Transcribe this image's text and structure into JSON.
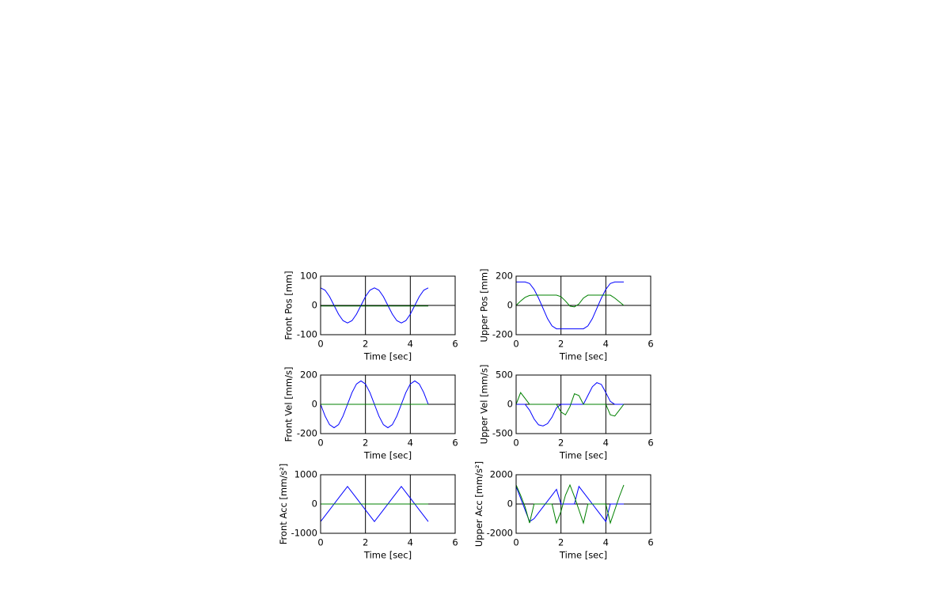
{
  "chart_data": [
    {
      "type": "line",
      "x_label": "Time [sec]",
      "y_label": "Front Pos [mm]",
      "x": [
        0,
        0.2,
        0.4,
        0.6,
        0.8,
        1.0,
        1.2,
        1.4,
        1.6,
        1.8,
        2.0,
        2.2,
        2.4,
        2.6,
        2.8,
        3.0,
        3.2,
        3.4,
        3.6,
        3.8,
        4.0,
        4.2,
        4.4,
        4.6,
        4.8
      ],
      "series": [
        {
          "color": "#0000ff",
          "values": [
            60,
            52,
            30,
            0,
            -30,
            -52,
            -60,
            -52,
            -30,
            0,
            30,
            52,
            60,
            52,
            30,
            0,
            -30,
            -52,
            -60,
            -52,
            -30,
            0,
            30,
            52,
            60
          ]
        },
        {
          "color": "#006400",
          "values": [
            -2,
            -2,
            -2,
            -2,
            -2,
            -2,
            -2,
            -2,
            -2,
            -2,
            -2,
            -2,
            -2,
            -2,
            -2,
            -2,
            -2,
            -2,
            -2,
            -2,
            -2,
            -2,
            -2,
            -2,
            -2
          ]
        }
      ],
      "xlim": [
        0,
        6
      ],
      "xticks": [
        0,
        2,
        4,
        6
      ],
      "ylim": [
        -100,
        100
      ],
      "yticks": [
        -100,
        0,
        100
      ],
      "grid": true
    },
    {
      "type": "line",
      "x_label": "Time [sec]",
      "y_label": "Upper Pos [mm]",
      "x": [
        0,
        0.2,
        0.4,
        0.6,
        0.8,
        1.0,
        1.2,
        1.4,
        1.6,
        1.8,
        2.0,
        2.2,
        2.4,
        2.6,
        2.8,
        3.0,
        3.2,
        3.4,
        3.6,
        3.8,
        4.0,
        4.2,
        4.4,
        4.6,
        4.8
      ],
      "series": [
        {
          "color": "#0000ff",
          "values": [
            160,
            160,
            160,
            150,
            110,
            50,
            -20,
            -90,
            -140,
            -160,
            -160,
            -160,
            -160,
            -160,
            -160,
            -160,
            -140,
            -90,
            -20,
            50,
            110,
            150,
            160,
            160,
            160
          ]
        },
        {
          "color": "#008000",
          "values": [
            0,
            30,
            55,
            68,
            70,
            70,
            70,
            70,
            70,
            70,
            60,
            30,
            -5,
            -10,
            10,
            50,
            70,
            70,
            70,
            70,
            70,
            70,
            50,
            25,
            0
          ]
        }
      ],
      "xlim": [
        0,
        6
      ],
      "xticks": [
        0,
        2,
        4,
        6
      ],
      "ylim": [
        -200,
        200
      ],
      "yticks": [
        -200,
        0,
        200
      ],
      "grid": true
    },
    {
      "type": "line",
      "x_label": "Time [sec]",
      "y_label": "Front Vel [mm/s]",
      "x": [
        0,
        0.2,
        0.4,
        0.6,
        0.8,
        1.0,
        1.2,
        1.4,
        1.6,
        1.8,
        2.0,
        2.2,
        2.4,
        2.6,
        2.8,
        3.0,
        3.2,
        3.4,
        3.6,
        3.8,
        4.0,
        4.2,
        4.4,
        4.6,
        4.8
      ],
      "series": [
        {
          "color": "#0000ff",
          "values": [
            0,
            -80,
            -139,
            -160,
            -139,
            -80,
            0,
            80,
            139,
            160,
            139,
            80,
            0,
            -80,
            -139,
            -160,
            -139,
            -80,
            0,
            80,
            139,
            160,
            139,
            80,
            0
          ]
        },
        {
          "color": "#008000",
          "values": [
            0,
            0,
            0,
            0,
            0,
            0,
            0,
            0,
            0,
            0,
            0,
            0,
            0,
            0,
            0,
            0,
            0,
            0,
            0,
            0,
            0,
            0,
            0,
            0,
            0
          ]
        }
      ],
      "xlim": [
        0,
        6
      ],
      "xticks": [
        0,
        2,
        4,
        6
      ],
      "ylim": [
        -200,
        200
      ],
      "yticks": [
        -200,
        0,
        200
      ],
      "grid": true
    },
    {
      "type": "line",
      "x_label": "Time [sec]",
      "y_label": "Upper Vel [mm/s]",
      "x": [
        0,
        0.2,
        0.4,
        0.6,
        0.8,
        1.0,
        1.2,
        1.4,
        1.6,
        1.8,
        2.0,
        2.2,
        2.4,
        2.6,
        2.8,
        3.0,
        3.2,
        3.4,
        3.6,
        3.8,
        4.0,
        4.2,
        4.4,
        4.6,
        4.8
      ],
      "series": [
        {
          "color": "#0000ff",
          "values": [
            0,
            0,
            0,
            -100,
            -250,
            -350,
            -370,
            -330,
            -220,
            -60,
            0,
            0,
            0,
            0,
            0,
            0,
            150,
            300,
            370,
            340,
            200,
            50,
            0,
            0,
            0
          ]
        },
        {
          "color": "#008000",
          "values": [
            0,
            200,
            100,
            0,
            0,
            0,
            0,
            0,
            0,
            0,
            -130,
            -180,
            -40,
            180,
            150,
            0,
            0,
            0,
            0,
            0,
            0,
            -180,
            -200,
            -100,
            0
          ]
        }
      ],
      "xlim": [
        0,
        6
      ],
      "xticks": [
        0,
        2,
        4,
        6
      ],
      "ylim": [
        -500,
        500
      ],
      "yticks": [
        -500,
        0,
        500
      ],
      "grid": true
    },
    {
      "type": "line",
      "x_label": "Time [sec]",
      "y_label": "Front Acc [mm/s²]",
      "x": [
        0,
        0.2,
        0.4,
        0.6,
        0.8,
        1.0,
        1.2,
        1.4,
        1.6,
        1.8,
        2.0,
        2.2,
        2.4,
        2.6,
        2.8,
        3.0,
        3.2,
        3.4,
        3.6,
        3.8,
        4.0,
        4.2,
        4.4,
        4.6,
        4.8
      ],
      "series": [
        {
          "color": "#0000ff",
          "values": [
            -600,
            -400,
            -200,
            0,
            200,
            400,
            600,
            400,
            200,
            0,
            -200,
            -400,
            -600,
            -400,
            -200,
            0,
            200,
            400,
            600,
            400,
            200,
            0,
            -200,
            -400,
            -600
          ]
        },
        {
          "color": "#008000",
          "values": [
            0,
            0,
            0,
            0,
            0,
            0,
            0,
            0,
            0,
            0,
            0,
            0,
            0,
            0,
            0,
            0,
            0,
            0,
            0,
            0,
            0,
            0,
            0,
            0,
            0
          ]
        }
      ],
      "xlim": [
        0,
        6
      ],
      "xticks": [
        0,
        2,
        4,
        6
      ],
      "ylim": [
        -1000,
        1000
      ],
      "yticks": [
        -1000,
        0,
        1000
      ],
      "grid": true
    },
    {
      "type": "line",
      "x_label": "Time [sec]",
      "y_label": "Upper Acc [mm/s²]",
      "x": [
        0,
        0.2,
        0.4,
        0.6,
        0.8,
        1.0,
        1.2,
        1.4,
        1.6,
        1.8,
        2.0,
        2.2,
        2.4,
        2.6,
        2.8,
        3.0,
        3.2,
        3.4,
        3.6,
        3.8,
        4.0,
        4.2,
        4.4,
        4.6,
        4.8
      ],
      "series": [
        {
          "color": "#0000ff",
          "values": [
            1200,
            400,
            -400,
            -1200,
            -1000,
            -600,
            -200,
            200,
            600,
            1000,
            0,
            0,
            0,
            0,
            1200,
            800,
            400,
            0,
            -400,
            -800,
            -1200,
            0,
            0,
            0,
            0
          ]
        },
        {
          "color": "#008000",
          "values": [
            1300,
            600,
            -200,
            -1300,
            0,
            0,
            0,
            0,
            0,
            -1300,
            -500,
            600,
            1300,
            500,
            -400,
            -1300,
            0,
            0,
            0,
            0,
            0,
            -1300,
            -400,
            500,
            1300
          ]
        }
      ],
      "xlim": [
        0,
        6
      ],
      "xticks": [
        0,
        2,
        4,
        6
      ],
      "ylim": [
        -2000,
        2000
      ],
      "yticks": [
        -2000,
        0,
        2000
      ],
      "grid": true
    }
  ]
}
